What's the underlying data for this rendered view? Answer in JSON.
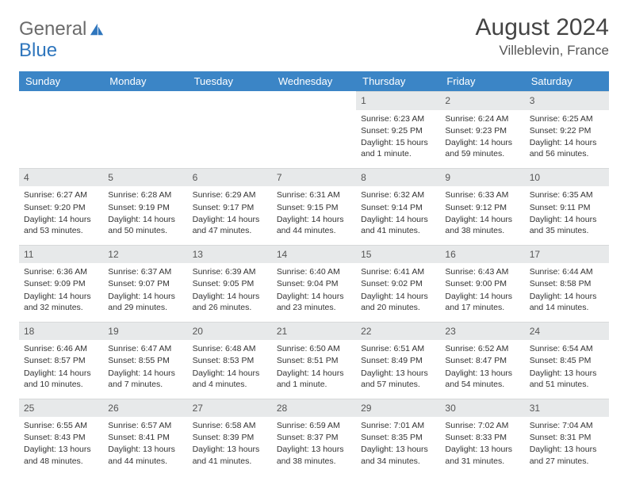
{
  "brand": {
    "word1": "General",
    "word2": "Blue"
  },
  "title": "August 2024",
  "location": "Villeblevin, France",
  "daysOfWeek": [
    "Sunday",
    "Monday",
    "Tuesday",
    "Wednesday",
    "Thursday",
    "Friday",
    "Saturday"
  ],
  "colors": {
    "header_bg": "#3b85c6",
    "header_text": "#ffffff",
    "daynum_bg": "#e7e9ea",
    "logo_gray": "#6b6b6b",
    "logo_blue": "#2f76bd"
  },
  "weeks": [
    [
      null,
      null,
      null,
      null,
      {
        "n": "1",
        "sr": "Sunrise: 6:23 AM",
        "ss": "Sunset: 9:25 PM",
        "dl": "Daylight: 15 hours and 1 minute."
      },
      {
        "n": "2",
        "sr": "Sunrise: 6:24 AM",
        "ss": "Sunset: 9:23 PM",
        "dl": "Daylight: 14 hours and 59 minutes."
      },
      {
        "n": "3",
        "sr": "Sunrise: 6:25 AM",
        "ss": "Sunset: 9:22 PM",
        "dl": "Daylight: 14 hours and 56 minutes."
      }
    ],
    [
      {
        "n": "4",
        "sr": "Sunrise: 6:27 AM",
        "ss": "Sunset: 9:20 PM",
        "dl": "Daylight: 14 hours and 53 minutes."
      },
      {
        "n": "5",
        "sr": "Sunrise: 6:28 AM",
        "ss": "Sunset: 9:19 PM",
        "dl": "Daylight: 14 hours and 50 minutes."
      },
      {
        "n": "6",
        "sr": "Sunrise: 6:29 AM",
        "ss": "Sunset: 9:17 PM",
        "dl": "Daylight: 14 hours and 47 minutes."
      },
      {
        "n": "7",
        "sr": "Sunrise: 6:31 AM",
        "ss": "Sunset: 9:15 PM",
        "dl": "Daylight: 14 hours and 44 minutes."
      },
      {
        "n": "8",
        "sr": "Sunrise: 6:32 AM",
        "ss": "Sunset: 9:14 PM",
        "dl": "Daylight: 14 hours and 41 minutes."
      },
      {
        "n": "9",
        "sr": "Sunrise: 6:33 AM",
        "ss": "Sunset: 9:12 PM",
        "dl": "Daylight: 14 hours and 38 minutes."
      },
      {
        "n": "10",
        "sr": "Sunrise: 6:35 AM",
        "ss": "Sunset: 9:11 PM",
        "dl": "Daylight: 14 hours and 35 minutes."
      }
    ],
    [
      {
        "n": "11",
        "sr": "Sunrise: 6:36 AM",
        "ss": "Sunset: 9:09 PM",
        "dl": "Daylight: 14 hours and 32 minutes."
      },
      {
        "n": "12",
        "sr": "Sunrise: 6:37 AM",
        "ss": "Sunset: 9:07 PM",
        "dl": "Daylight: 14 hours and 29 minutes."
      },
      {
        "n": "13",
        "sr": "Sunrise: 6:39 AM",
        "ss": "Sunset: 9:05 PM",
        "dl": "Daylight: 14 hours and 26 minutes."
      },
      {
        "n": "14",
        "sr": "Sunrise: 6:40 AM",
        "ss": "Sunset: 9:04 PM",
        "dl": "Daylight: 14 hours and 23 minutes."
      },
      {
        "n": "15",
        "sr": "Sunrise: 6:41 AM",
        "ss": "Sunset: 9:02 PM",
        "dl": "Daylight: 14 hours and 20 minutes."
      },
      {
        "n": "16",
        "sr": "Sunrise: 6:43 AM",
        "ss": "Sunset: 9:00 PM",
        "dl": "Daylight: 14 hours and 17 minutes."
      },
      {
        "n": "17",
        "sr": "Sunrise: 6:44 AM",
        "ss": "Sunset: 8:58 PM",
        "dl": "Daylight: 14 hours and 14 minutes."
      }
    ],
    [
      {
        "n": "18",
        "sr": "Sunrise: 6:46 AM",
        "ss": "Sunset: 8:57 PM",
        "dl": "Daylight: 14 hours and 10 minutes."
      },
      {
        "n": "19",
        "sr": "Sunrise: 6:47 AM",
        "ss": "Sunset: 8:55 PM",
        "dl": "Daylight: 14 hours and 7 minutes."
      },
      {
        "n": "20",
        "sr": "Sunrise: 6:48 AM",
        "ss": "Sunset: 8:53 PM",
        "dl": "Daylight: 14 hours and 4 minutes."
      },
      {
        "n": "21",
        "sr": "Sunrise: 6:50 AM",
        "ss": "Sunset: 8:51 PM",
        "dl": "Daylight: 14 hours and 1 minute."
      },
      {
        "n": "22",
        "sr": "Sunrise: 6:51 AM",
        "ss": "Sunset: 8:49 PM",
        "dl": "Daylight: 13 hours and 57 minutes."
      },
      {
        "n": "23",
        "sr": "Sunrise: 6:52 AM",
        "ss": "Sunset: 8:47 PM",
        "dl": "Daylight: 13 hours and 54 minutes."
      },
      {
        "n": "24",
        "sr": "Sunrise: 6:54 AM",
        "ss": "Sunset: 8:45 PM",
        "dl": "Daylight: 13 hours and 51 minutes."
      }
    ],
    [
      {
        "n": "25",
        "sr": "Sunrise: 6:55 AM",
        "ss": "Sunset: 8:43 PM",
        "dl": "Daylight: 13 hours and 48 minutes."
      },
      {
        "n": "26",
        "sr": "Sunrise: 6:57 AM",
        "ss": "Sunset: 8:41 PM",
        "dl": "Daylight: 13 hours and 44 minutes."
      },
      {
        "n": "27",
        "sr": "Sunrise: 6:58 AM",
        "ss": "Sunset: 8:39 PM",
        "dl": "Daylight: 13 hours and 41 minutes."
      },
      {
        "n": "28",
        "sr": "Sunrise: 6:59 AM",
        "ss": "Sunset: 8:37 PM",
        "dl": "Daylight: 13 hours and 38 minutes."
      },
      {
        "n": "29",
        "sr": "Sunrise: 7:01 AM",
        "ss": "Sunset: 8:35 PM",
        "dl": "Daylight: 13 hours and 34 minutes."
      },
      {
        "n": "30",
        "sr": "Sunrise: 7:02 AM",
        "ss": "Sunset: 8:33 PM",
        "dl": "Daylight: 13 hours and 31 minutes."
      },
      {
        "n": "31",
        "sr": "Sunrise: 7:04 AM",
        "ss": "Sunset: 8:31 PM",
        "dl": "Daylight: 13 hours and 27 minutes."
      }
    ]
  ]
}
